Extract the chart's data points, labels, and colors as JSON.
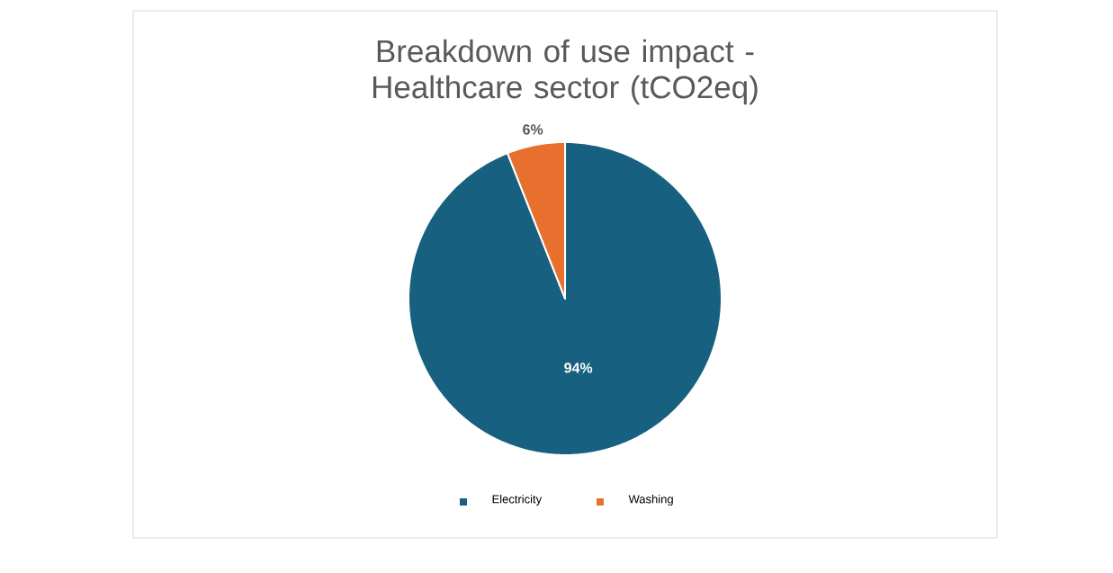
{
  "chart_data": {
    "type": "pie",
    "title": "Breakdown of use impact - Healthcare sector (tCO2eq)",
    "categories": [
      "Electricity",
      "Washing"
    ],
    "values": [
      94,
      6
    ],
    "colors": [
      "#17607f",
      "#e8702f"
    ],
    "value_labels": [
      "94%",
      "6%"
    ],
    "legend": "bottom"
  }
}
